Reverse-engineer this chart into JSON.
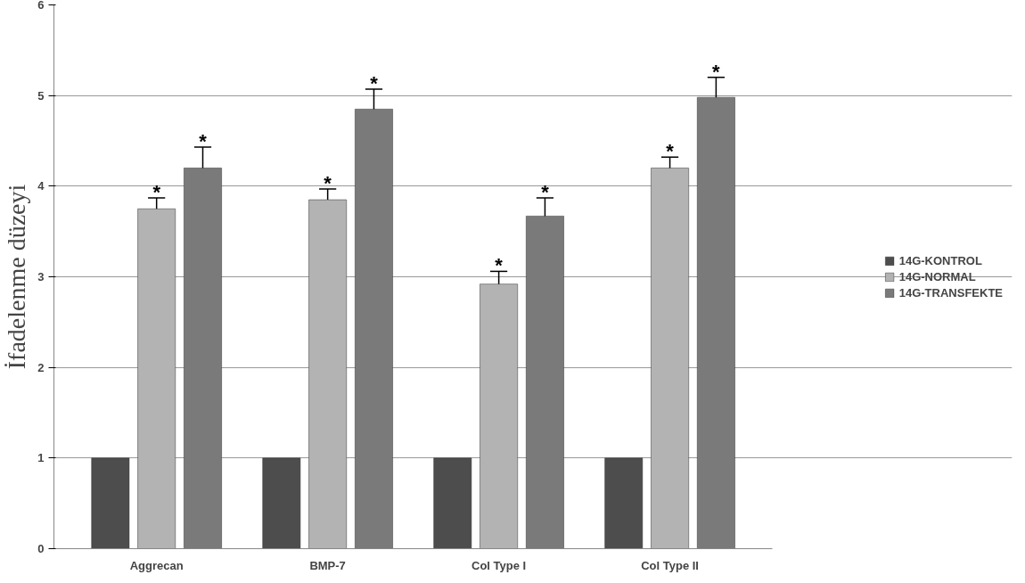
{
  "chart_data": {
    "type": "bar",
    "ylabel": "İfadelenme düzeyi",
    "categories": [
      "Aggrecan",
      "BMP-7",
      "Col Type I",
      "Col Type II"
    ],
    "series": [
      {
        "name": "14G-KONTROL",
        "color": "#4d4d4d",
        "values": [
          1,
          1,
          1,
          1
        ]
      },
      {
        "name": "14G-NORMAL",
        "color": "#b3b3b3",
        "values": [
          3.75,
          3.85,
          2.92,
          4.2
        ],
        "errors": [
          [
            3.75,
            3.87
          ],
          [
            3.85,
            3.97
          ],
          [
            2.92,
            3.06
          ],
          [
            4.2,
            4.32
          ]
        ]
      },
      {
        "name": "14G-TRANSFEKTE",
        "color": "#7a7a7a",
        "values": [
          4.2,
          4.85,
          3.67,
          4.98
        ],
        "errors": [
          [
            4.2,
            4.43
          ],
          [
            4.85,
            5.07
          ],
          [
            3.67,
            3.87
          ],
          [
            4.98,
            5.2
          ]
        ]
      }
    ],
    "ylim": [
      0,
      6
    ],
    "yticks": [
      0,
      1,
      2,
      3,
      4,
      5,
      6
    ],
    "grid": "y",
    "legend": "right",
    "annotations": [
      "*",
      "*",
      "*",
      "*",
      "*",
      "*",
      "*",
      "*"
    ]
  }
}
